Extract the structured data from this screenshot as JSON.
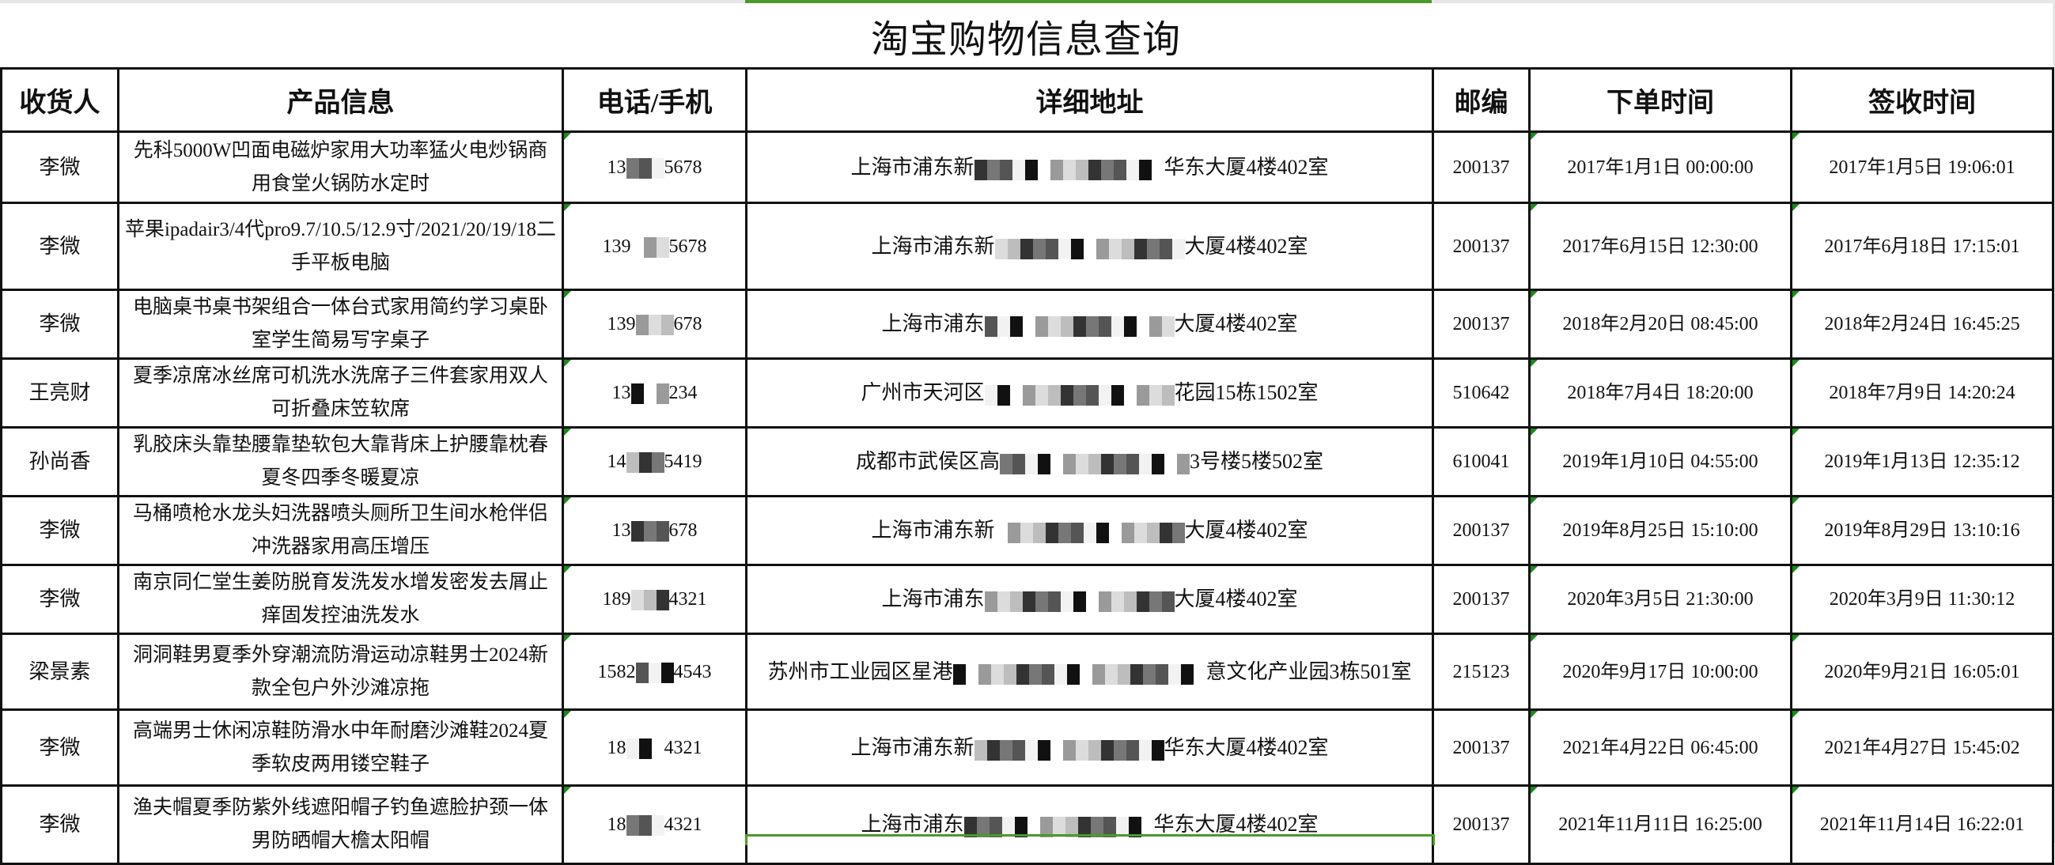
{
  "title": "淘宝购物信息查询",
  "colors": {
    "accent_green": "#4a9a2c",
    "comment_triangle": "#1a8a1a",
    "border": "#111111"
  },
  "columns": [
    "收货人",
    "产品信息",
    "电话/手机",
    "详细地址",
    "邮编",
    "下单时间",
    "签收时间"
  ],
  "rows": [
    {
      "name": "李微",
      "product": "先科5000W凹面电磁炉家用大功率猛火电炒锅商用食堂火锅防水定时",
      "phone": {
        "prefix": "13",
        "suffix": "5678"
      },
      "address": {
        "prefix": "上海市浦东新",
        "suffix": "华东大厦4楼402室"
      },
      "postal": "200137",
      "order_time": "2017年1月1日 00:00:00",
      "sign_time": "2017年1月5日 19:06:01"
    },
    {
      "name": "李微",
      "product": "苹果ipadair3/4代pro9.7/10.5/12.9寸/2021/20/19/18二手平板电脑",
      "phone": {
        "prefix": "139",
        "suffix": "5678"
      },
      "address": {
        "prefix": "上海市浦东新",
        "suffix": "大厦4楼402室"
      },
      "postal": "200137",
      "order_time": "2017年6月15日 12:30:00",
      "sign_time": "2017年6月18日 17:15:01"
    },
    {
      "name": "李微",
      "product": "电脑桌书桌书架组合一体台式家用简约学习桌卧室学生简易写字桌子",
      "phone": {
        "prefix": "139",
        "suffix": "678"
      },
      "address": {
        "prefix": "上海市浦东",
        "suffix": "大厦4楼402室"
      },
      "postal": "200137",
      "order_time": "2018年2月20日 08:45:00",
      "sign_time": "2018年2月24日 16:45:25"
    },
    {
      "name": "王亮财",
      "product": "夏季凉席冰丝席可机洗水洗席子三件套家用双人可折叠床笠软席",
      "phone": {
        "prefix": "13",
        "suffix": "234"
      },
      "address": {
        "prefix": "广州市天河区",
        "suffix": "花园15栋1502室"
      },
      "postal": "510642",
      "order_time": "2018年7月4日 18:20:00",
      "sign_time": "2018年7月9日 14:20:24"
    },
    {
      "name": "孙尚香",
      "product": "乳胶床头靠垫腰靠垫软包大靠背床上护腰靠枕春夏冬四季冬暖夏凉",
      "phone": {
        "prefix": "14",
        "suffix": "5419"
      },
      "address": {
        "prefix": "成都市武侯区高",
        "suffix": "3号楼5楼502室"
      },
      "postal": "610041",
      "order_time": "2019年1月10日 04:55:00",
      "sign_time": "2019年1月13日 12:35:12"
    },
    {
      "name": "李微",
      "product": "马桶喷枪水龙头妇洗器喷头厕所卫生间水枪伴侣冲洗器家用高压增压",
      "phone": {
        "prefix": "13",
        "suffix": "678"
      },
      "address": {
        "prefix": "上海市浦东新",
        "suffix": "大厦4楼402室"
      },
      "postal": "200137",
      "order_time": "2019年8月25日 15:10:00",
      "sign_time": "2019年8月29日 13:10:16"
    },
    {
      "name": "李微",
      "product": "南京同仁堂生姜防脱育发洗发水增发密发去屑止痒固发控油洗发水",
      "phone": {
        "prefix": "189",
        "suffix": "4321"
      },
      "address": {
        "prefix": "上海市浦东",
        "suffix": "大厦4楼402室"
      },
      "postal": "200137",
      "order_time": "2020年3月5日 21:30:00",
      "sign_time": "2020年3月9日 11:30:12"
    },
    {
      "name": "梁景素",
      "product": "洞洞鞋男夏季外穿潮流防滑运动凉鞋男士2024新款全包户外沙滩凉拖",
      "phone": {
        "prefix": "1582",
        "suffix": "4543"
      },
      "address": {
        "prefix": "苏州市工业园区星港",
        "suffix": "意文化产业园3栋501室"
      },
      "postal": "215123",
      "order_time": "2020年9月17日 10:00:00",
      "sign_time": "2020年9月21日 16:05:01"
    },
    {
      "name": "李微",
      "product": "高端男士休闲凉鞋防滑水中年耐磨沙滩鞋2024夏季软皮两用镂空鞋子",
      "phone": {
        "prefix": "18",
        "suffix": "4321"
      },
      "address": {
        "prefix": "上海市浦东新",
        "suffix": "华东大厦4楼402室"
      },
      "postal": "200137",
      "order_time": "2021年4月22日 06:45:00",
      "sign_time": "2021年4月27日 15:45:02"
    },
    {
      "name": "李微",
      "product": "渔夫帽夏季防紫外线遮阳帽子钓鱼遮脸护颈一体男防晒帽大檐太阳帽",
      "phone": {
        "prefix": "18",
        "suffix": "4321"
      },
      "address": {
        "prefix": "上海市浦东",
        "suffix": "华东大厦4楼402室"
      },
      "postal": "200137",
      "order_time": "2021年11月11日 16:25:00",
      "sign_time": "2021年11月14日 16:22:01"
    }
  ]
}
